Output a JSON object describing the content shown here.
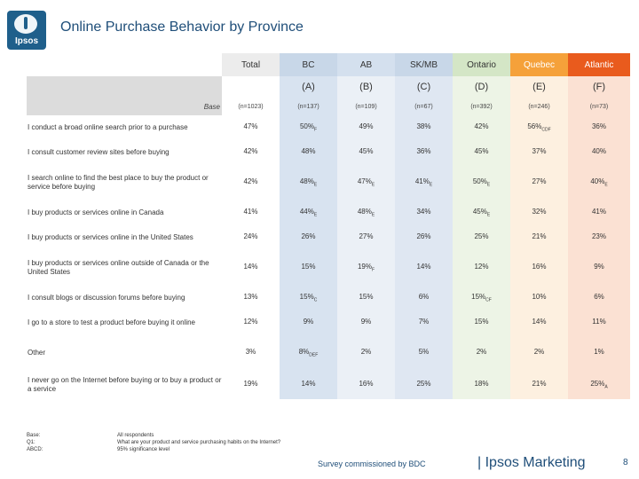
{
  "logo": {
    "text": "Ipsos"
  },
  "title": "Online Purchase Behavior by Province",
  "columns": [
    {
      "label": "Total",
      "letter": "",
      "base": "(n=1023)"
    },
    {
      "label": "BC",
      "letter": "(A)",
      "base": "(n=137)"
    },
    {
      "label": "AB",
      "letter": "(B)",
      "base": "(n=109)"
    },
    {
      "label": "SK/MB",
      "letter": "(C)",
      "base": "(n=67)"
    },
    {
      "label": "Ontario",
      "letter": "(D)",
      "base": "(n=392)"
    },
    {
      "label": "Quebec",
      "letter": "(E)",
      "base": "(n=246)"
    },
    {
      "label": "Atlantic",
      "letter": "(F)",
      "base": "(n=73)"
    }
  ],
  "base_label": "Base",
  "rows": [
    {
      "label": "I conduct a broad online search prior to a purchase",
      "values": [
        [
          "47%",
          ""
        ],
        [
          "50%",
          "F"
        ],
        [
          "49%",
          ""
        ],
        [
          "38%",
          ""
        ],
        [
          "42%",
          ""
        ],
        [
          "56%",
          "CDF"
        ],
        [
          "36%",
          ""
        ]
      ]
    },
    {
      "label": "I consult customer review sites before buying",
      "values": [
        [
          "42%",
          ""
        ],
        [
          "48%",
          ""
        ],
        [
          "45%",
          ""
        ],
        [
          "36%",
          ""
        ],
        [
          "45%",
          ""
        ],
        [
          "37%",
          ""
        ],
        [
          "40%",
          ""
        ]
      ]
    },
    {
      "label": "I search online to find the best place to buy the product or service before buying",
      "values": [
        [
          "42%",
          ""
        ],
        [
          "48%",
          "E"
        ],
        [
          "47%",
          "E"
        ],
        [
          "41%",
          "E"
        ],
        [
          "50%",
          "E"
        ],
        [
          "27%",
          ""
        ],
        [
          "40%",
          "E"
        ]
      ]
    },
    {
      "label": "I buy products or services online in Canada",
      "values": [
        [
          "41%",
          ""
        ],
        [
          "44%",
          "E"
        ],
        [
          "48%",
          "E"
        ],
        [
          "34%",
          ""
        ],
        [
          "45%",
          "E"
        ],
        [
          "32%",
          ""
        ],
        [
          "41%",
          ""
        ]
      ]
    },
    {
      "label": "I buy products or services online in the United States",
      "values": [
        [
          "24%",
          ""
        ],
        [
          "26%",
          ""
        ],
        [
          "27%",
          ""
        ],
        [
          "26%",
          ""
        ],
        [
          "25%",
          ""
        ],
        [
          "21%",
          ""
        ],
        [
          "23%",
          ""
        ]
      ]
    },
    {
      "label": "I buy products or services online outside of Canada or the United States",
      "values": [
        [
          "14%",
          ""
        ],
        [
          "15%",
          ""
        ],
        [
          "19%",
          "F"
        ],
        [
          "14%",
          ""
        ],
        [
          "12%",
          ""
        ],
        [
          "16%",
          ""
        ],
        [
          "9%",
          ""
        ]
      ]
    },
    {
      "label": "I consult blogs or discussion forums before buying",
      "values": [
        [
          "13%",
          ""
        ],
        [
          "15%",
          "C"
        ],
        [
          "15%",
          ""
        ],
        [
          "6%",
          ""
        ],
        [
          "15%",
          "CF"
        ],
        [
          "10%",
          ""
        ],
        [
          "6%",
          ""
        ]
      ]
    },
    {
      "label": "I go to a store to test a product before buying it online",
      "values": [
        [
          "12%",
          ""
        ],
        [
          "9%",
          ""
        ],
        [
          "9%",
          ""
        ],
        [
          "7%",
          ""
        ],
        [
          "15%",
          ""
        ],
        [
          "14%",
          ""
        ],
        [
          "11%",
          ""
        ]
      ]
    },
    {
      "label": "Other",
      "values": [
        [
          "3%",
          ""
        ],
        [
          "8%",
          "DEF"
        ],
        [
          "2%",
          ""
        ],
        [
          "5%",
          ""
        ],
        [
          "2%",
          ""
        ],
        [
          "2%",
          ""
        ],
        [
          "1%",
          ""
        ]
      ]
    },
    {
      "label": "I never go on the Internet before buying or to buy a product or a service",
      "values": [
        [
          "19%",
          ""
        ],
        [
          "14%",
          ""
        ],
        [
          "16%",
          ""
        ],
        [
          "25%",
          ""
        ],
        [
          "18%",
          ""
        ],
        [
          "21%",
          ""
        ],
        [
          "25%",
          "A"
        ]
      ]
    }
  ],
  "footer": {
    "labels": [
      "Base:",
      "Q1:",
      "ABCD:"
    ],
    "values": [
      "All respondents",
      "What are your product and service purchasing habits on the Internet?",
      "95% significance level"
    ]
  },
  "survey_note": "Survey commissioned by BDC",
  "brand": "|  Ipsos Marketing",
  "page_number": "8"
}
